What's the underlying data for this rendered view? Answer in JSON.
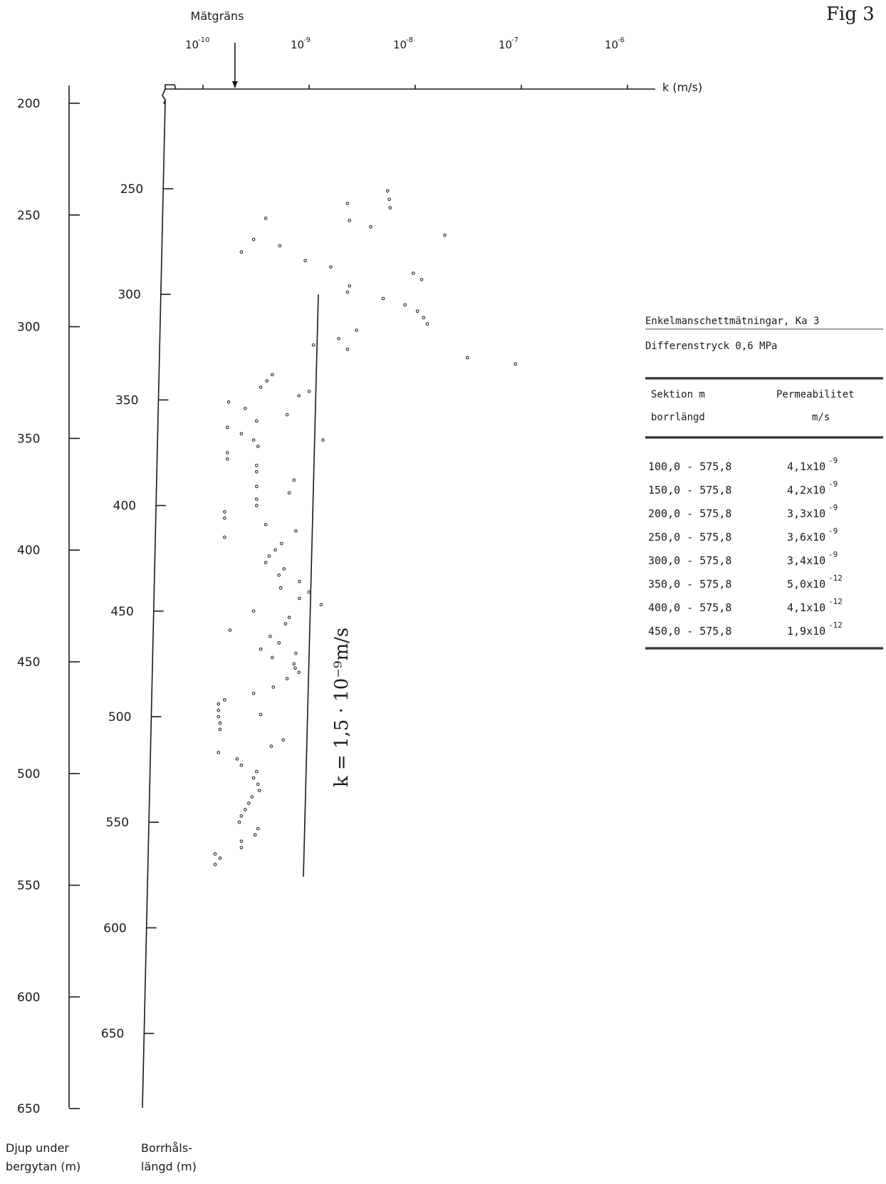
{
  "figure_label": "Fig 3",
  "chart_data": {
    "type": "scatter",
    "title": "",
    "x_axis": {
      "label": "k (m/s)",
      "scale": "log",
      "range": [
        1e-10,
        1e-06
      ],
      "ticks": [
        {
          "value": 1e-10,
          "label_base": "10",
          "label_exp": "-10"
        },
        {
          "value": 1e-09,
          "label_base": "10",
          "label_exp": "-9"
        },
        {
          "value": 1e-08,
          "label_base": "10",
          "label_exp": "-8"
        },
        {
          "value": 1e-07,
          "label_base": "10",
          "label_exp": "-7"
        },
        {
          "value": 1e-06,
          "label_base": "10",
          "label_exp": "-6"
        }
      ],
      "measurement_limit": {
        "label": "Mätgräns",
        "value": 2e-10
      }
    },
    "y_axis_depth": {
      "label_line1": "Djup under",
      "label_line2": "bergytan (m)",
      "ticks": [
        200,
        250,
        300,
        350,
        400,
        450,
        500,
        550,
        600,
        650
      ]
    },
    "y_axis_borehole": {
      "label_line1": "Borrhåls-",
      "label_line2": "längd (m)",
      "ticks": [
        250,
        300,
        350,
        400,
        450,
        500,
        550,
        600,
        650
      ]
    },
    "mean_line": {
      "label": "k = 1,5 · 10⁻⁹m/s",
      "value": 1.5e-09,
      "from_length": 300,
      "to_length": 575.8
    },
    "points": [
      {
        "k": 5.5e-09,
        "length": 251
      },
      {
        "k": 5.7e-09,
        "length": 255
      },
      {
        "k": 5.8e-09,
        "length": 259
      },
      {
        "k": 2.3e-09,
        "length": 257
      },
      {
        "k": 3.8e-09,
        "length": 268
      },
      {
        "k": 2.4e-09,
        "length": 265
      },
      {
        "k": 1.9e-08,
        "length": 272
      },
      {
        "k": 3.9e-10,
        "length": 264
      },
      {
        "k": 3e-10,
        "length": 274
      },
      {
        "k": 2.3e-10,
        "length": 280
      },
      {
        "k": 5.3e-10,
        "length": 277
      },
      {
        "k": 9.2e-10,
        "length": 284
      },
      {
        "k": 1.6e-09,
        "length": 287
      },
      {
        "k": 9.6e-09,
        "length": 290
      },
      {
        "k": 1.15e-08,
        "length": 293
      },
      {
        "k": 2.4e-09,
        "length": 296
      },
      {
        "k": 2.3e-09,
        "length": 299
      },
      {
        "k": 5e-09,
        "length": 302
      },
      {
        "k": 8e-09,
        "length": 305
      },
      {
        "k": 1.05e-08,
        "length": 308
      },
      {
        "k": 1.2e-08,
        "length": 311
      },
      {
        "k": 1.3e-08,
        "length": 314
      },
      {
        "k": 2.8e-09,
        "length": 317
      },
      {
        "k": 1.9e-09,
        "length": 321
      },
      {
        "k": 1.1e-09,
        "length": 324
      },
      {
        "k": 2.3e-09,
        "length": 326
      },
      {
        "k": 3.1e-08,
        "length": 330
      },
      {
        "k": 8.8e-08,
        "length": 333
      },
      {
        "k": 4.5e-10,
        "length": 338
      },
      {
        "k": 4e-10,
        "length": 341
      },
      {
        "k": 3.5e-10,
        "length": 344
      },
      {
        "k": 1e-09,
        "length": 346
      },
      {
        "k": 8e-10,
        "length": 348
      },
      {
        "k": 1.75e-10,
        "length": 351
      },
      {
        "k": 2.5e-10,
        "length": 354
      },
      {
        "k": 6.2e-10,
        "length": 357
      },
      {
        "k": 3.2e-10,
        "length": 360
      },
      {
        "k": 1.7e-10,
        "length": 363
      },
      {
        "k": 2.3e-10,
        "length": 366
      },
      {
        "k": 1.35e-09,
        "length": 369
      },
      {
        "k": 3e-10,
        "length": 369
      },
      {
        "k": 3.3e-10,
        "length": 372
      },
      {
        "k": 1.7e-10,
        "length": 375
      },
      {
        "k": 1.7e-10,
        "length": 378
      },
      {
        "k": 3.2e-10,
        "length": 381
      },
      {
        "k": 3.2e-10,
        "length": 384
      },
      {
        "k": 7.2e-10,
        "length": 388
      },
      {
        "k": 3.2e-10,
        "length": 391
      },
      {
        "k": 6.5e-10,
        "length": 394
      },
      {
        "k": 3.2e-10,
        "length": 397
      },
      {
        "k": 3.2e-10,
        "length": 400
      },
      {
        "k": 1.6e-10,
        "length": 403
      },
      {
        "k": 1.6e-10,
        "length": 406
      },
      {
        "k": 3.9e-10,
        "length": 409
      },
      {
        "k": 7.5e-10,
        "length": 412
      },
      {
        "k": 1.6e-10,
        "length": 415
      },
      {
        "k": 5.5e-10,
        "length": 418
      },
      {
        "k": 4.8e-10,
        "length": 421
      },
      {
        "k": 4.2e-10,
        "length": 424
      },
      {
        "k": 3.9e-10,
        "length": 427
      },
      {
        "k": 5.8e-10,
        "length": 430
      },
      {
        "k": 5.2e-10,
        "length": 433
      },
      {
        "k": 8.1e-10,
        "length": 436
      },
      {
        "k": 5.4e-10,
        "length": 439
      },
      {
        "k": 1e-09,
        "length": 441
      },
      {
        "k": 8.1e-10,
        "length": 444
      },
      {
        "k": 1.3e-09,
        "length": 447
      },
      {
        "k": 3e-10,
        "length": 450
      },
      {
        "k": 6.5e-10,
        "length": 453
      },
      {
        "k": 6e-10,
        "length": 456
      },
      {
        "k": 1.8e-10,
        "length": 459
      },
      {
        "k": 4.3e-10,
        "length": 462
      },
      {
        "k": 5.2e-10,
        "length": 465
      },
      {
        "k": 3.5e-10,
        "length": 468
      },
      {
        "k": 7.5e-10,
        "length": 470
      },
      {
        "k": 4.5e-10,
        "length": 472
      },
      {
        "k": 7.2e-10,
        "length": 475
      },
      {
        "k": 7.4e-10,
        "length": 477
      },
      {
        "k": 8e-10,
        "length": 479
      },
      {
        "k": 6.2e-10,
        "length": 482
      },
      {
        "k": 4.6e-10,
        "length": 486
      },
      {
        "k": 3e-10,
        "length": 489
      },
      {
        "k": 1.6e-10,
        "length": 492
      },
      {
        "k": 1.4e-10,
        "length": 494
      },
      {
        "k": 1.4e-10,
        "length": 497
      },
      {
        "k": 1.4e-10,
        "length": 500
      },
      {
        "k": 3.5e-10,
        "length": 499
      },
      {
        "k": 1.45e-10,
        "length": 503
      },
      {
        "k": 1.45e-10,
        "length": 506
      },
      {
        "k": 5.7e-10,
        "length": 511
      },
      {
        "k": 4.4e-10,
        "length": 514
      },
      {
        "k": 1.4e-10,
        "length": 517
      },
      {
        "k": 2.1e-10,
        "length": 520
      },
      {
        "k": 2.3e-10,
        "length": 523
      },
      {
        "k": 3.2e-10,
        "length": 526
      },
      {
        "k": 3e-10,
        "length": 529
      },
      {
        "k": 3.3e-10,
        "length": 532
      },
      {
        "k": 3.4e-10,
        "length": 535
      },
      {
        "k": 2.9e-10,
        "length": 538
      },
      {
        "k": 2.7e-10,
        "length": 541
      },
      {
        "k": 2.5e-10,
        "length": 544
      },
      {
        "k": 2.3e-10,
        "length": 547
      },
      {
        "k": 2.2e-10,
        "length": 550
      },
      {
        "k": 3.3e-10,
        "length": 553
      },
      {
        "k": 3.1e-10,
        "length": 556
      },
      {
        "k": 2.3e-10,
        "length": 559
      },
      {
        "k": 2.3e-10,
        "length": 562
      },
      {
        "k": 1.3e-10,
        "length": 565
      },
      {
        "k": 1.45e-10,
        "length": 567
      },
      {
        "k": 1.3e-10,
        "length": 570
      }
    ]
  },
  "table": {
    "title": "Enkelmanschettmätningar, Ka 3",
    "subtitle": "Differenstryck 0,6 MPa",
    "header": {
      "col1_line1": "Sektion m",
      "col1_line2": "borrlängd",
      "col2_line1": "Permeabilitet",
      "col2_line2": "m/s"
    },
    "rows": [
      {
        "section": "100,0 - 575,8",
        "mantissa": "4,1x10",
        "exp": "-9"
      },
      {
        "section": "150,0 - 575,8",
        "mantissa": "4,2x10",
        "exp": "-9"
      },
      {
        "section": "200,0 - 575,8",
        "mantissa": "3,3x10",
        "exp": "-9"
      },
      {
        "section": "250,0 - 575,8",
        "mantissa": "3,6x10",
        "exp": "-9"
      },
      {
        "section": "300,0 - 575,8",
        "mantissa": "3,4x10",
        "exp": "-9"
      },
      {
        "section": "350,0 - 575,8",
        "mantissa": "5,0x10",
        "exp": "-12"
      },
      {
        "section": "400,0 - 575,8",
        "mantissa": "4,1x10",
        "exp": "-12"
      },
      {
        "section": "450,0 - 575,8",
        "mantissa": "1,9x10",
        "exp": "-12"
      }
    ]
  }
}
